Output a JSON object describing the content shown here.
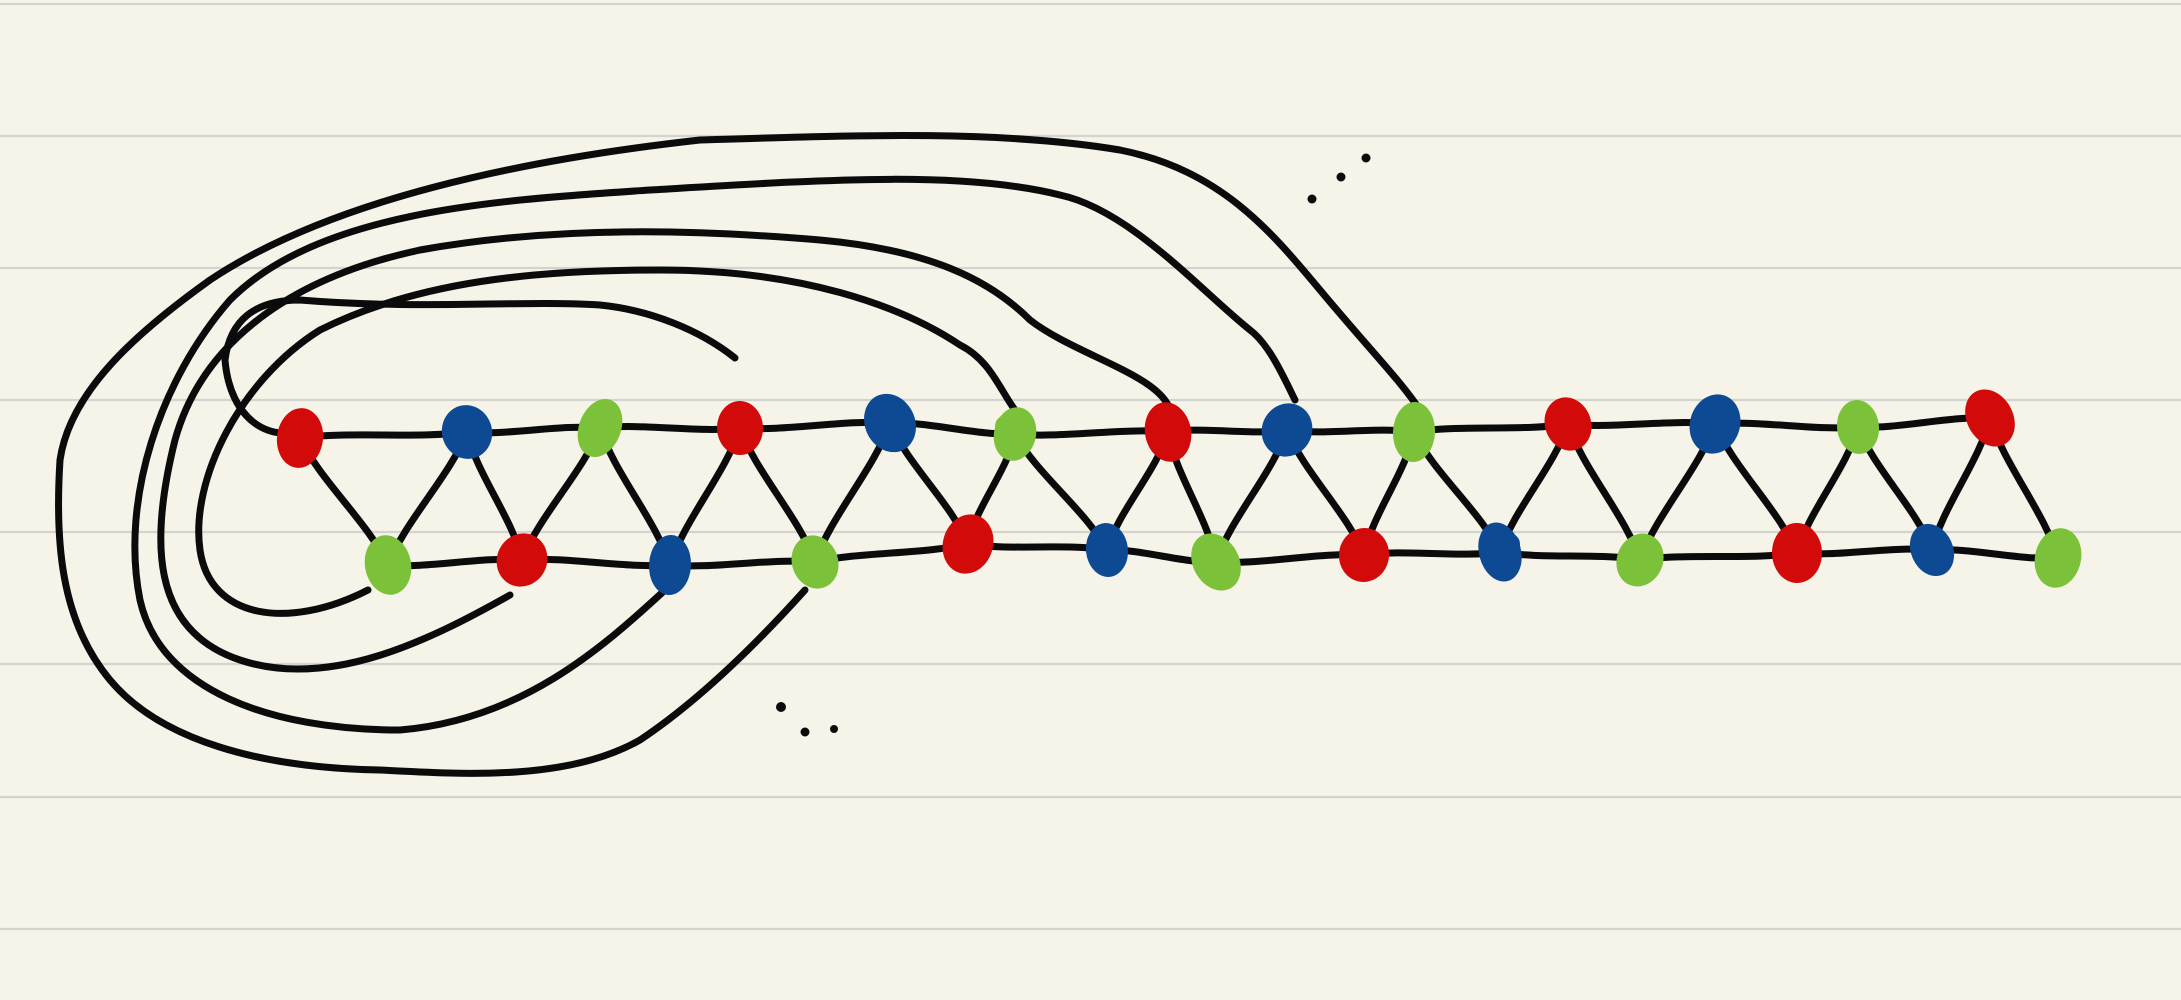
{
  "palette": {
    "paper": "#f6f4e8",
    "rule": "#d3d3cf",
    "ink": "#0b0b0b",
    "red": "#d20a0a",
    "blue": "#0d4a93",
    "green": "#7cc13a"
  },
  "vertex_colors": {
    "top_row": [
      "red",
      "blue",
      "green",
      "red",
      "blue",
      "green",
      "red",
      "blue",
      "green",
      "red",
      "blue",
      "green",
      "red"
    ],
    "bottom_row": [
      "green",
      "red",
      "blue",
      "green",
      "red",
      "blue",
      "green",
      "red",
      "blue",
      "green",
      "red",
      "blue",
      "green"
    ]
  }
}
